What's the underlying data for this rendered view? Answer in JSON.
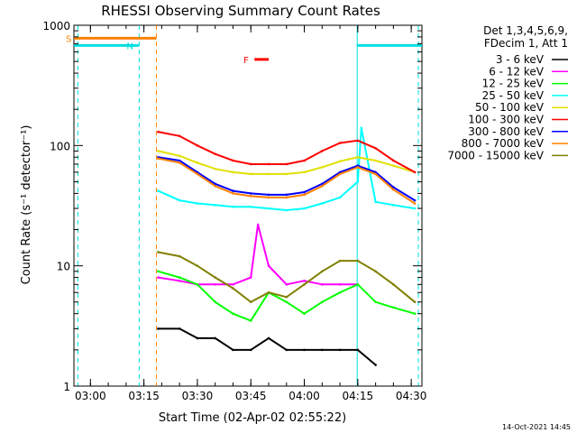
{
  "chart_data": {
    "type": "line",
    "title": "RHESSI Observing Summary Count Rates",
    "xlabel": "Start Time (02-Apr-02 02:55:22)",
    "ylabel": "Count Rate (s⁻¹ detector⁻¹)",
    "yscale": "log",
    "ylim": [
      1,
      1000
    ],
    "xlim": [
      "02:55:22",
      "04:33:00"
    ],
    "xticks": [
      "03:00",
      "03:15",
      "03:30",
      "03:45",
      "04:00",
      "04:15",
      "04:30"
    ],
    "yticks": [
      "1",
      "10",
      "100",
      "1000"
    ],
    "footer": "14-Oct-2021 14:45",
    "legend_header": [
      "Det 1,3,4,5,6,9,",
      "FDecim 1, Att 1"
    ],
    "flags": [
      {
        "label": "S",
        "color": "#ff8000",
        "start": "02:55:22",
        "end": "03:18:30"
      },
      {
        "label": "N",
        "color": "#00e0e0",
        "start": "02:55:22",
        "end": "03:13:40",
        "restart": "04:14:50"
      },
      {
        "label": "F",
        "color": "#ff0000",
        "start": "03:46:00",
        "end": "03:50:00"
      }
    ],
    "vlines": [
      {
        "time": "02:56:30",
        "color": "#00e0e0",
        "style": "dashed"
      },
      {
        "time": "03:13:40",
        "color": "#00e0e0",
        "style": "dashed"
      },
      {
        "time": "03:18:30",
        "color": "#ff8000",
        "style": "dashed"
      },
      {
        "time": "04:14:50",
        "color": "#00e0e0",
        "style": "solid"
      },
      {
        "time": "04:32:00",
        "color": "#00e0e0",
        "style": "dashed"
      }
    ],
    "series": [
      {
        "name": "3 - 6 keV",
        "color": "#000000",
        "x": [
          "03:19",
          "03:25",
          "03:30",
          "03:35",
          "03:40",
          "03:45",
          "03:50",
          "03:55",
          "04:00",
          "04:05",
          "04:10",
          "04:15",
          "04:20"
        ],
        "y": [
          3,
          3,
          2.5,
          2.5,
          2,
          2,
          2.5,
          2,
          2,
          2,
          2,
          2,
          1.5
        ]
      },
      {
        "name": "6 - 12 keV",
        "color": "#ff00ff",
        "x": [
          "03:19",
          "03:25",
          "03:30",
          "03:35",
          "03:40",
          "03:45",
          "03:47",
          "03:50",
          "03:55",
          "04:00",
          "04:05",
          "04:10",
          "04:15"
        ],
        "y": [
          8,
          7.5,
          7,
          7,
          7,
          8,
          22,
          10,
          7,
          7.5,
          7,
          7,
          7
        ]
      },
      {
        "name": "12 - 25 keV",
        "color": "#00ff00",
        "x": [
          "03:19",
          "03:25",
          "03:30",
          "03:35",
          "03:40",
          "03:45",
          "03:50",
          "03:55",
          "04:00",
          "04:05",
          "04:10",
          "04:15",
          "04:20",
          "04:25",
          "04:31"
        ],
        "y": [
          9,
          8,
          7,
          5,
          4,
          3.5,
          6,
          5,
          4,
          5,
          6,
          7,
          5,
          4.5,
          4
        ]
      },
      {
        "name": "25 - 50 keV",
        "color": "#00ffff",
        "x": [
          "03:19",
          "03:25",
          "03:30",
          "03:35",
          "03:40",
          "03:45",
          "03:50",
          "03:55",
          "04:00",
          "04:05",
          "04:10",
          "04:15",
          "04:16",
          "04:20",
          "04:25",
          "04:31"
        ],
        "y": [
          42,
          35,
          33,
          32,
          31,
          31,
          30,
          29,
          30,
          33,
          37,
          50,
          140,
          34,
          32,
          30
        ]
      },
      {
        "name": "50 - 100 keV",
        "color": "#e0e000",
        "x": [
          "03:19",
          "03:25",
          "03:30",
          "03:35",
          "03:40",
          "03:45",
          "03:50",
          "03:55",
          "04:00",
          "04:05",
          "04:10",
          "04:15",
          "04:20",
          "04:25",
          "04:31"
        ],
        "y": [
          90,
          82,
          72,
          64,
          60,
          58,
          58,
          58,
          60,
          66,
          74,
          80,
          75,
          68,
          60
        ]
      },
      {
        "name": "100 - 300 keV",
        "color": "#ff0000",
        "x": [
          "03:19",
          "03:25",
          "03:30",
          "03:35",
          "03:40",
          "03:45",
          "03:50",
          "03:55",
          "04:00",
          "04:05",
          "04:10",
          "04:15",
          "04:20",
          "04:25",
          "04:31"
        ],
        "y": [
          130,
          120,
          100,
          85,
          75,
          70,
          70,
          70,
          75,
          90,
          105,
          110,
          95,
          75,
          60
        ]
      },
      {
        "name": "300 - 800 keV",
        "color": "#0000ff",
        "x": [
          "03:19",
          "03:25",
          "03:30",
          "03:35",
          "03:40",
          "03:45",
          "03:50",
          "03:55",
          "04:00",
          "04:05",
          "04:10",
          "04:15",
          "04:20",
          "04:25",
          "04:31"
        ],
        "y": [
          80,
          75,
          60,
          48,
          42,
          40,
          39,
          39,
          41,
          48,
          60,
          68,
          60,
          45,
          35
        ]
      },
      {
        "name": "800 - 7000 keV",
        "color": "#ff8000",
        "x": [
          "03:19",
          "03:25",
          "03:30",
          "03:35",
          "03:40",
          "03:45",
          "03:50",
          "03:55",
          "04:00",
          "04:05",
          "04:10",
          "04:15",
          "04:20",
          "04:25",
          "04:31"
        ],
        "y": [
          78,
          72,
          58,
          46,
          40,
          38,
          37,
          37,
          39,
          46,
          58,
          66,
          58,
          43,
          33
        ]
      },
      {
        "name": "7000 - 15000 keV",
        "color": "#808000",
        "x": [
          "03:19",
          "03:25",
          "03:30",
          "03:35",
          "03:40",
          "03:45",
          "03:50",
          "03:55",
          "04:00",
          "04:05",
          "04:10",
          "04:15",
          "04:20",
          "04:25",
          "04:31"
        ],
        "y": [
          13,
          12,
          10,
          8,
          6.5,
          5,
          6,
          5.5,
          7,
          9,
          11,
          11,
          9,
          7,
          5
        ]
      }
    ]
  }
}
